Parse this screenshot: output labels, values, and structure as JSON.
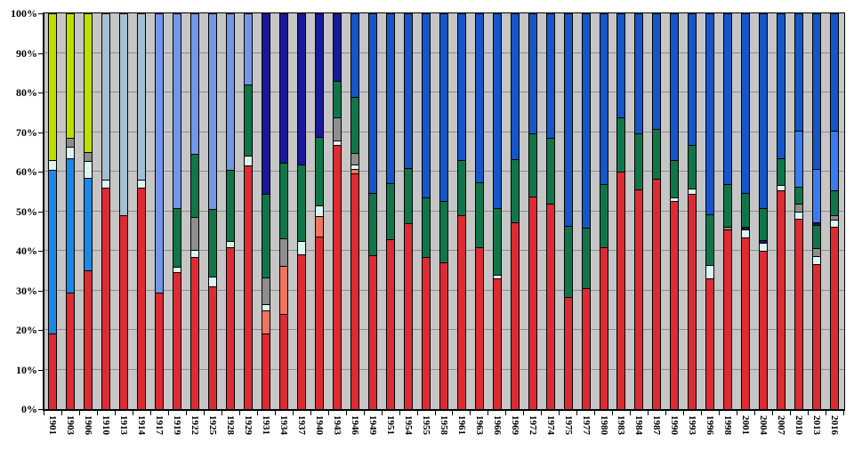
{
  "chart_data": {
    "type": "bar",
    "stacked": true,
    "stacking": "percent",
    "title": "",
    "xlabel": "",
    "ylabel": "",
    "ylim": [
      0,
      100
    ],
    "legend": "none",
    "grid": "horizontal lines every 10%",
    "y_ticks": [
      "0%",
      "10%",
      "20%",
      "30%",
      "40%",
      "50%",
      "60%",
      "70%",
      "80%",
      "90%",
      "100%"
    ],
    "gridline_percents": [
      10,
      20,
      30,
      40,
      50,
      60,
      70,
      80,
      90
    ],
    "categories": [
      "1901",
      "1903",
      "1906",
      "1910",
      "1913",
      "1914",
      "1917",
      "1919",
      "1922",
      "1925",
      "1928",
      "1929",
      "1931",
      "1934",
      "1937",
      "1940",
      "1943",
      "1946",
      "1949",
      "1951",
      "1954",
      "1955",
      "1958",
      "1961",
      "1963",
      "1966",
      "1969",
      "1972",
      "1974",
      "1975",
      "1977",
      "1980",
      "1983",
      "1984",
      "1987",
      "1990",
      "1993",
      "1996",
      "1998",
      "2001",
      "2004",
      "2007",
      "2010",
      "2013",
      "2016"
    ],
    "colors": {
      "red": "#DD2B33",
      "salmon": "#F0755F",
      "pale_cyan": "#DCF5F0",
      "white_seg": "#FDFFFF",
      "gray": "#8E8E8E",
      "dark_thin": "#1A1A5E",
      "chartreuse": "#BCDF00",
      "dodger_blue": "#1C87E6",
      "steel_blue": "#A4BFD1",
      "cornflower": "#7396EA",
      "dark_green": "#10764A",
      "navy": "#1A1A99",
      "royal_blue": "#1556C8",
      "bright_blue": "#3A7CF0"
    },
    "plot_background": "#C6C6C6",
    "gridline_color": "#8C8C8C",
    "bars": [
      {
        "year": "1901",
        "segments": [
          [
            "red",
            19
          ],
          [
            "dodger_blue",
            41.5
          ],
          [
            "pale_cyan",
            2.5
          ],
          [
            "chartreuse",
            37
          ]
        ]
      },
      {
        "year": "1903",
        "segments": [
          [
            "red",
            29.5
          ],
          [
            "dodger_blue",
            33.8
          ],
          [
            "pale_cyan",
            3
          ],
          [
            "gray",
            2.2
          ],
          [
            "chartreuse",
            31.5
          ]
        ]
      },
      {
        "year": "1906",
        "segments": [
          [
            "red",
            35
          ],
          [
            "dodger_blue",
            23.5
          ],
          [
            "pale_cyan",
            4.1
          ],
          [
            "gray",
            2.4
          ],
          [
            "chartreuse",
            35
          ]
        ]
      },
      {
        "year": "1910",
        "segments": [
          [
            "red",
            56
          ],
          [
            "pale_cyan",
            2
          ],
          [
            "steel_blue",
            42
          ]
        ]
      },
      {
        "year": "1913",
        "segments": [
          [
            "red",
            49
          ],
          [
            "steel_blue",
            51
          ]
        ]
      },
      {
        "year": "1914",
        "segments": [
          [
            "red",
            56
          ],
          [
            "pale_cyan",
            2
          ],
          [
            "steel_blue",
            42
          ]
        ]
      },
      {
        "year": "1917",
        "segments": [
          [
            "red",
            29.5
          ],
          [
            "cornflower",
            70.5
          ]
        ]
      },
      {
        "year": "1919",
        "segments": [
          [
            "red",
            34.7
          ],
          [
            "pale_cyan",
            1.3
          ],
          [
            "dark_green",
            14.7
          ],
          [
            "cornflower",
            49.3
          ]
        ]
      },
      {
        "year": "1922",
        "segments": [
          [
            "red",
            38.4
          ],
          [
            "pale_cyan",
            1.8
          ],
          [
            "gray",
            8.4
          ],
          [
            "dark_green",
            15.8
          ],
          [
            "cornflower",
            35.6
          ]
        ]
      },
      {
        "year": "1925",
        "segments": [
          [
            "red",
            31
          ],
          [
            "pale_cyan",
            2.5
          ],
          [
            "dark_green",
            17
          ],
          [
            "cornflower",
            49.5
          ]
        ]
      },
      {
        "year": "1928",
        "segments": [
          [
            "red",
            41
          ],
          [
            "pale_cyan",
            1.5
          ],
          [
            "dark_green",
            18
          ],
          [
            "cornflower",
            39.5
          ]
        ]
      },
      {
        "year": "1929",
        "segments": [
          [
            "red",
            61.5
          ],
          [
            "pale_cyan",
            2.5
          ],
          [
            "dark_green",
            18
          ],
          [
            "cornflower",
            18
          ]
        ]
      },
      {
        "year": "1931",
        "segments": [
          [
            "red",
            19
          ],
          [
            "salmon",
            6
          ],
          [
            "pale_cyan",
            1.5
          ],
          [
            "gray",
            6.7
          ],
          [
            "dark_green",
            21.2
          ],
          [
            "navy",
            45.6
          ]
        ]
      },
      {
        "year": "1934",
        "segments": [
          [
            "red",
            24
          ],
          [
            "salmon",
            12.2
          ],
          [
            "gray",
            7
          ],
          [
            "dark_green",
            19
          ],
          [
            "navy",
            37.8
          ]
        ]
      },
      {
        "year": "1937",
        "segments": [
          [
            "red",
            39.2
          ],
          [
            "pale_cyan",
            3.3
          ],
          [
            "dark_green",
            19.3
          ],
          [
            "navy",
            38.2
          ]
        ]
      },
      {
        "year": "1940",
        "segments": [
          [
            "red",
            43.6
          ],
          [
            "salmon",
            5.2
          ],
          [
            "pale_cyan",
            2.6
          ],
          [
            "dark_green",
            17.3
          ],
          [
            "navy",
            31.3
          ]
        ]
      },
      {
        "year": "1943",
        "segments": [
          [
            "red",
            66.7
          ],
          [
            "pale_cyan",
            1.1
          ],
          [
            "gray",
            5.9
          ],
          [
            "dark_green",
            9.3
          ],
          [
            "navy",
            17
          ]
        ]
      },
      {
        "year": "1946",
        "segments": [
          [
            "red",
            59.6
          ],
          [
            "salmon",
            1.1
          ],
          [
            "pale_cyan",
            1.1
          ],
          [
            "gray",
            3
          ],
          [
            "dark_green",
            14.1
          ],
          [
            "royal_blue",
            21.1
          ]
        ]
      },
      {
        "year": "1949",
        "segments": [
          [
            "red",
            38.8
          ],
          [
            "dark_green",
            15.7
          ],
          [
            "royal_blue",
            45.5
          ]
        ]
      },
      {
        "year": "1951",
        "segments": [
          [
            "red",
            43
          ],
          [
            "dark_green",
            14
          ],
          [
            "royal_blue",
            43
          ]
        ]
      },
      {
        "year": "1954",
        "segments": [
          [
            "red",
            47
          ],
          [
            "dark_green",
            14
          ],
          [
            "royal_blue",
            39
          ]
        ]
      },
      {
        "year": "1955",
        "segments": [
          [
            "red",
            38.5
          ],
          [
            "dark_green",
            15
          ],
          [
            "royal_blue",
            46.5
          ]
        ]
      },
      {
        "year": "1958",
        "segments": [
          [
            "red",
            37
          ],
          [
            "dark_green",
            15.5
          ],
          [
            "royal_blue",
            47.5
          ]
        ]
      },
      {
        "year": "1961",
        "segments": [
          [
            "red",
            49
          ],
          [
            "dark_green",
            14
          ],
          [
            "royal_blue",
            37
          ]
        ]
      },
      {
        "year": "1963",
        "segments": [
          [
            "red",
            41
          ],
          [
            "dark_green",
            16.4
          ],
          [
            "royal_blue",
            42.6
          ]
        ]
      },
      {
        "year": "1966",
        "segments": [
          [
            "red",
            33.1
          ],
          [
            "white_seg",
            0.8
          ],
          [
            "dark_green",
            17
          ],
          [
            "royal_blue",
            49.1
          ]
        ]
      },
      {
        "year": "1969",
        "segments": [
          [
            "red",
            47.2
          ],
          [
            "dark_green",
            16
          ],
          [
            "royal_blue",
            36.8
          ]
        ]
      },
      {
        "year": "1972",
        "segments": [
          [
            "red",
            53.6
          ],
          [
            "dark_green",
            16
          ],
          [
            "royal_blue",
            30.4
          ]
        ]
      },
      {
        "year": "1974",
        "segments": [
          [
            "red",
            52
          ],
          [
            "dark_green",
            16.5
          ],
          [
            "royal_blue",
            31.5
          ]
        ]
      },
      {
        "year": "1975",
        "segments": [
          [
            "red",
            28.3
          ],
          [
            "dark_green",
            18.1
          ],
          [
            "royal_blue",
            53.6
          ]
        ]
      },
      {
        "year": "1977",
        "segments": [
          [
            "red",
            30.6
          ],
          [
            "dark_green",
            15.3
          ],
          [
            "royal_blue",
            54.1
          ]
        ]
      },
      {
        "year": "1980",
        "segments": [
          [
            "red",
            40.8
          ],
          [
            "dark_green",
            16
          ],
          [
            "royal_blue",
            43.2
          ]
        ]
      },
      {
        "year": "1983",
        "segments": [
          [
            "red",
            60
          ],
          [
            "dark_green",
            13.6
          ],
          [
            "royal_blue",
            26.4
          ]
        ]
      },
      {
        "year": "1984",
        "segments": [
          [
            "red",
            55.4
          ],
          [
            "dark_green",
            14.2
          ],
          [
            "royal_blue",
            30.4
          ]
        ]
      },
      {
        "year": "1987",
        "segments": [
          [
            "red",
            58.1
          ],
          [
            "dark_green",
            12.8
          ],
          [
            "royal_blue",
            29.1
          ]
        ]
      },
      {
        "year": "1990",
        "segments": [
          [
            "red",
            52.7
          ],
          [
            "pale_cyan",
            0.7
          ],
          [
            "dark_green",
            9.5
          ],
          [
            "royal_blue",
            37.1
          ]
        ]
      },
      {
        "year": "1993",
        "segments": [
          [
            "red",
            54.4
          ],
          [
            "pale_cyan",
            1.4
          ],
          [
            "dark_green",
            10.9
          ],
          [
            "royal_blue",
            33.3
          ]
        ]
      },
      {
        "year": "1996",
        "segments": [
          [
            "red",
            33.1
          ],
          [
            "pale_cyan",
            3.4
          ],
          [
            "dark_green",
            12.8
          ],
          [
            "royal_blue",
            50.7
          ]
        ]
      },
      {
        "year": "1998",
        "segments": [
          [
            "red",
            45.3
          ],
          [
            "gray",
            0.7
          ],
          [
            "dark_green",
            10.8
          ],
          [
            "royal_blue",
            43.2
          ]
        ]
      },
      {
        "year": "2001",
        "segments": [
          [
            "red",
            43.3
          ],
          [
            "pale_cyan",
            2
          ],
          [
            "dark_thin",
            0.7
          ],
          [
            "dark_green",
            8.7
          ],
          [
            "royal_blue",
            45.3
          ]
        ]
      },
      {
        "year": "2004",
        "segments": [
          [
            "red",
            40
          ],
          [
            "pale_cyan",
            2
          ],
          [
            "dark_thin",
            0.7
          ],
          [
            "dark_green",
            8
          ],
          [
            "royal_blue",
            49.3
          ]
        ]
      },
      {
        "year": "2007",
        "segments": [
          [
            "red",
            55.3
          ],
          [
            "pale_cyan",
            1.4
          ],
          [
            "dark_green",
            6.7
          ],
          [
            "royal_blue",
            36.6
          ]
        ]
      },
      {
        "year": "2010",
        "segments": [
          [
            "red",
            48
          ],
          [
            "pale_cyan",
            2
          ],
          [
            "gray",
            2
          ],
          [
            "dark_green",
            4.3
          ],
          [
            "bright_blue",
            14.1
          ],
          [
            "royal_blue",
            29.6
          ]
        ]
      },
      {
        "year": "2013",
        "segments": [
          [
            "red",
            36.7
          ],
          [
            "pale_cyan",
            1.9
          ],
          [
            "gray",
            2
          ],
          [
            "dark_green",
            6
          ],
          [
            "dark_thin",
            0.7
          ],
          [
            "bright_blue",
            13.4
          ],
          [
            "royal_blue",
            39.3
          ]
        ]
      },
      {
        "year": "2016",
        "segments": [
          [
            "red",
            46
          ],
          [
            "pale_cyan",
            1.9
          ],
          [
            "gray",
            1
          ],
          [
            "dark_green",
            6.5
          ],
          [
            "bright_blue",
            15
          ],
          [
            "royal_blue",
            29.6
          ]
        ]
      }
    ]
  }
}
